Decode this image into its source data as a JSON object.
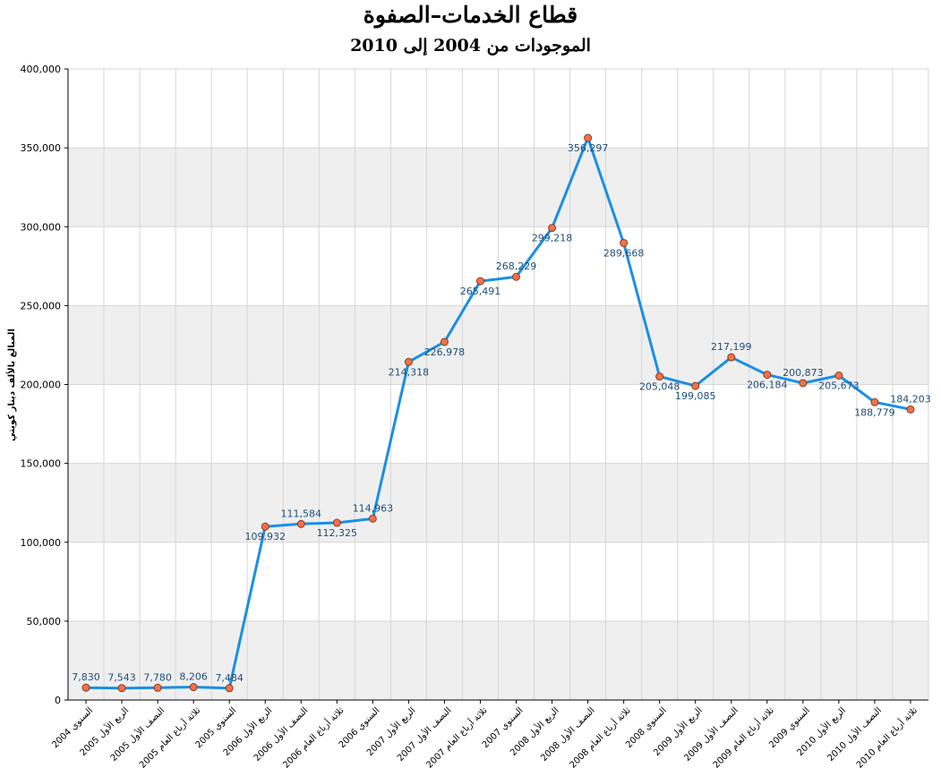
{
  "chart_data": {
    "type": "line",
    "title": "قطاع الخدمات–الصفوة",
    "subtitle": "الموجودات من 2004 إلى 2010",
    "ylabel": "المبالغ بالألف دينار كويتي",
    "xlabel": "",
    "ylim": [
      0,
      400000
    ],
    "yticks": [
      0,
      50000,
      100000,
      150000,
      200000,
      250000,
      300000,
      350000,
      400000
    ],
    "ytick_labels": [
      "0",
      "50,000",
      "100,000",
      "150,000",
      "200,000",
      "250,000",
      "300,000",
      "350,000",
      "400,000"
    ],
    "grid": "horizontal bands and vertical lines",
    "legend": "none",
    "categories": [
      "السنوي 2004",
      "الربع الأول 2005",
      "النصف الأول 2005",
      "ثلاثة أرباع العام 2005",
      "السنوي 2005",
      "الربع الأول 2006",
      "النصف الأول 2006",
      "ثلاثة أرباع العام 2006",
      "السنوي 2006",
      "الربع الأول 2007",
      "النصف الأول 2007",
      "ثلاثة أرباع العام 2007",
      "السنوي 2007",
      "الربع الأول 2008",
      "النصف الأول 2008",
      "ثلاثة أرباع العام 2008",
      "السنوي 2008",
      "الربع الأول 2009",
      "النصف الأول 2009",
      "ثلاثة أرباع العام 2009",
      "السنوي 2009",
      "الربع الأول 2010",
      "النصف الأول 2010",
      "ثلاثة أرباع العام 2010"
    ],
    "values": [
      7830,
      7543,
      7780,
      8206,
      7484,
      109932,
      111584,
      112325,
      114963,
      214318,
      226978,
      265491,
      268229,
      299218,
      356297,
      289668,
      205048,
      199085,
      217199,
      206184,
      200873,
      205673,
      188779,
      184203
    ],
    "value_labels": [
      "7,830",
      "7,543",
      "7,780",
      "8,206",
      "7,484",
      "109,932",
      "111,584",
      "112,325",
      "114,963",
      "214,318",
      "226,978",
      "265,491",
      "268,229",
      "299,218",
      "356,297",
      "289,668",
      "205,048",
      "199,085",
      "217,199",
      "206,184",
      "200,873",
      "205,673",
      "188,779",
      "184,203"
    ],
    "colors": {
      "line": "#1a8fe3",
      "marker_fill": "#f4714a",
      "marker_stroke": "#8a3a1e",
      "data_label": "#1f4e79",
      "band": "#efefef",
      "grid": "#d6d6d6",
      "axis": "#000000"
    }
  }
}
